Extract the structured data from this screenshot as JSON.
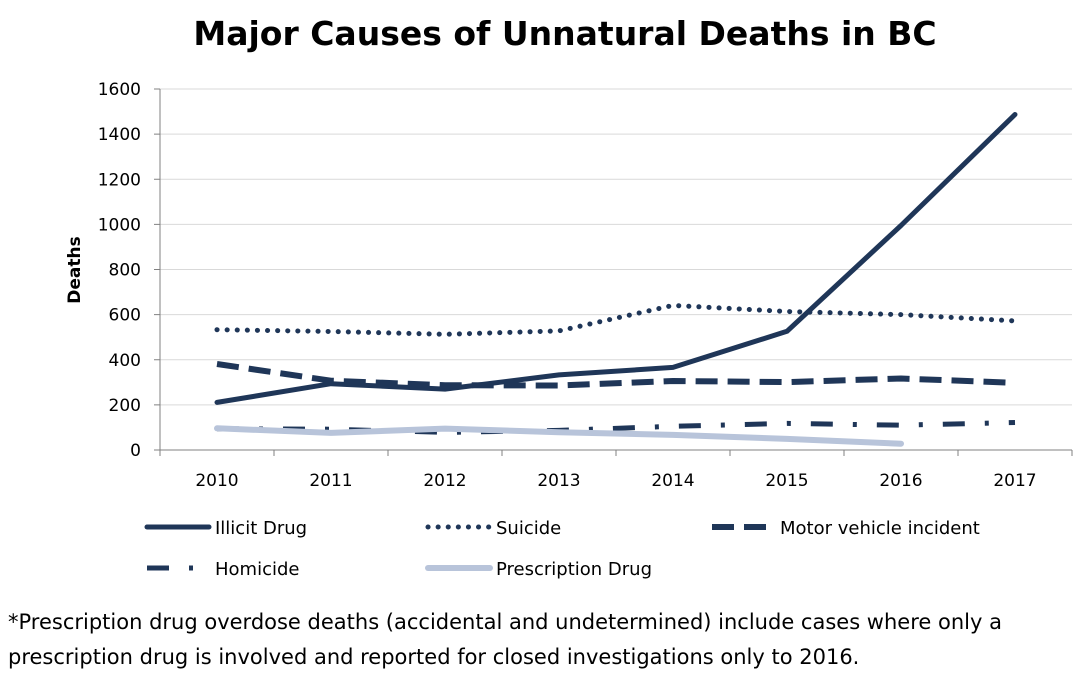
{
  "chart_data": {
    "type": "line",
    "title": "Major Causes of Unnatural Deaths in BC",
    "xlabel": "",
    "ylabel": "Deaths",
    "ylim": [
      0,
      1600
    ],
    "yticks": [
      0,
      200,
      400,
      600,
      800,
      1000,
      1200,
      1400,
      1600
    ],
    "categories": [
      "2010",
      "2011",
      "2012",
      "2013",
      "2014",
      "2015",
      "2016",
      "2017"
    ],
    "grid": true,
    "legend_position": "bottom",
    "series": [
      {
        "name": "Illicit Drug",
        "color": "#1f3658",
        "style": "solid",
        "values": [
          211,
          294,
          270,
          333,
          366,
          526,
          995,
          1487
        ]
      },
      {
        "name": "Suicide",
        "color": "#1f3658",
        "style": "dotted",
        "values": [
          533,
          525,
          513,
          528,
          641,
          614,
          600,
          572
        ]
      },
      {
        "name": "Motor vehicle incident",
        "color": "#1f3658",
        "style": "dashed",
        "values": [
          381,
          307,
          287,
          286,
          306,
          301,
          317,
          298
        ]
      },
      {
        "name": "Homicide",
        "color": "#1f3658",
        "style": "dashdot",
        "values": [
          94,
          92,
          78,
          87,
          105,
          118,
          110,
          122
        ]
      },
      {
        "name": "Prescription Drug",
        "color": "#b8c4da",
        "style": "solid",
        "values": [
          96,
          76,
          95,
          79,
          67,
          49,
          28,
          null
        ]
      }
    ]
  },
  "footnote": "*Prescription drug overdose deaths (accidental and undetermined) include cases where only a prescription drug is involved and reported for closed investigations only to 2016."
}
